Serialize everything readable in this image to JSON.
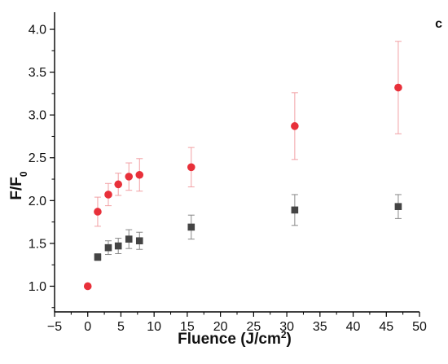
{
  "chart_data": {
    "type": "scatter",
    "panel_label": "c",
    "xlabel": "Fluence (J/cm",
    "xlabel_sup": "2",
    "xlabel_end": ")",
    "ylabel": "F/F",
    "ylabel_sub": "0",
    "xlim": [
      -5,
      50
    ],
    "ylim": [
      0.7,
      4.2
    ],
    "x_ticks": [
      -5,
      0,
      5,
      10,
      15,
      20,
      25,
      30,
      35,
      40,
      45,
      50
    ],
    "x_tick_labels": [
      "−5",
      "0",
      "5",
      "10",
      "15",
      "20",
      "25",
      "30",
      "35",
      "40",
      "45",
      "50"
    ],
    "y_ticks": [
      1.0,
      1.5,
      2.0,
      2.5,
      3.0,
      3.5,
      4.0
    ],
    "y_tick_labels": [
      "1.0",
      "1.5",
      "2.0",
      "2.5",
      "3.0",
      "3.5",
      "4.0"
    ],
    "grid": false,
    "series": [
      {
        "marker": "circle",
        "color": "#e8303a",
        "error_color": "#f2a0a4",
        "points": [
          {
            "x": 0,
            "y": 1.0,
            "err": 0
          },
          {
            "x": 1.5,
            "y": 1.87,
            "err": 0.17
          },
          {
            "x": 3.1,
            "y": 2.07,
            "err": 0.13
          },
          {
            "x": 4.6,
            "y": 2.19,
            "err": 0.13
          },
          {
            "x": 6.2,
            "y": 2.28,
            "err": 0.16
          },
          {
            "x": 7.8,
            "y": 2.3,
            "err": 0.19
          },
          {
            "x": 15.6,
            "y": 2.39,
            "err": 0.23
          },
          {
            "x": 31.2,
            "y": 2.87,
            "err": 0.39
          },
          {
            "x": 46.8,
            "y": 3.32,
            "err": 0.54
          }
        ]
      },
      {
        "marker": "square",
        "color": "#444444",
        "error_color": "#888888",
        "points": [
          {
            "x": 1.5,
            "y": 1.34,
            "err": 0.04
          },
          {
            "x": 3.1,
            "y": 1.45,
            "err": 0.08
          },
          {
            "x": 4.6,
            "y": 1.47,
            "err": 0.09
          },
          {
            "x": 6.2,
            "y": 1.55,
            "err": 0.11
          },
          {
            "x": 7.8,
            "y": 1.53,
            "err": 0.1
          },
          {
            "x": 15.6,
            "y": 1.69,
            "err": 0.14
          },
          {
            "x": 31.2,
            "y": 1.89,
            "err": 0.18
          },
          {
            "x": 46.8,
            "y": 1.93,
            "err": 0.14
          }
        ]
      }
    ]
  }
}
